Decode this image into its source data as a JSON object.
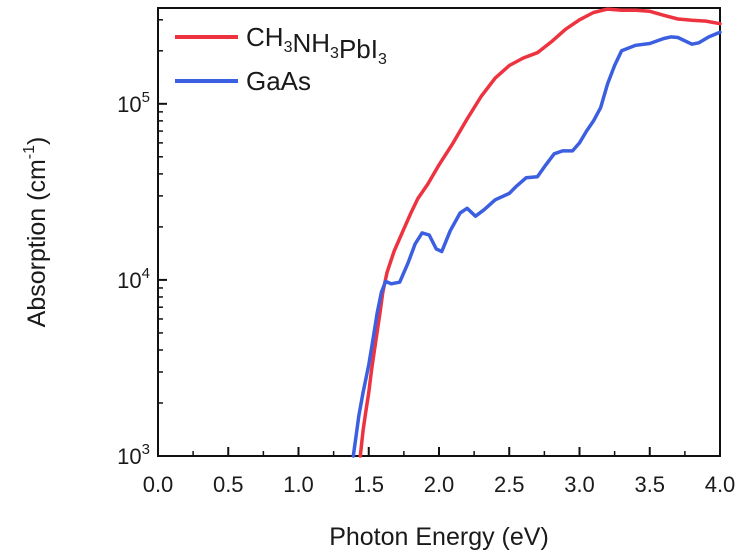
{
  "chart_data": {
    "type": "line",
    "title": "",
    "xlabel": "Photon Energy (eV)",
    "ylabel": {
      "base": "Absorption (cm",
      "sup": "-1",
      "close": ")"
    },
    "xlim": [
      0.0,
      4.0
    ],
    "ylim": [
      1000,
      350000
    ],
    "y_scale": "log",
    "x_ticks": [
      "0.0",
      "0.5",
      "1.0",
      "1.5",
      "2.0",
      "2.5",
      "3.0",
      "3.5",
      "4.0"
    ],
    "x_tick_values": [
      0.0,
      0.5,
      1.0,
      1.5,
      2.0,
      2.5,
      3.0,
      3.5,
      4.0
    ],
    "y_ticks": [
      {
        "value": 1000,
        "base": "10",
        "exp": "3"
      },
      {
        "value": 10000,
        "base": "10",
        "exp": "4"
      },
      {
        "value": 100000,
        "base": "10",
        "exp": "5"
      }
    ],
    "grid": false,
    "legend_position": "top-left",
    "series": [
      {
        "name": "CH3NH3PbI3",
        "legend": [
          {
            "t": "CH"
          },
          {
            "t": "3",
            "sub": true
          },
          {
            "t": "NH"
          },
          {
            "t": "3",
            "sub": true
          },
          {
            "t": "PbI"
          },
          {
            "t": "3",
            "sub": true
          }
        ],
        "color": "#ee3340",
        "points": [
          [
            1.44,
            1000
          ],
          [
            1.46,
            1400
          ],
          [
            1.48,
            1800
          ],
          [
            1.5,
            2300
          ],
          [
            1.52,
            3100
          ],
          [
            1.55,
            4500
          ],
          [
            1.58,
            6500
          ],
          [
            1.6,
            8500
          ],
          [
            1.63,
            11000
          ],
          [
            1.68,
            14500
          ],
          [
            1.75,
            19500
          ],
          [
            1.8,
            24000
          ],
          [
            1.85,
            29000
          ],
          [
            1.92,
            35000
          ],
          [
            2.0,
            45000
          ],
          [
            2.1,
            60000
          ],
          [
            2.2,
            82000
          ],
          [
            2.3,
            110000
          ],
          [
            2.4,
            140000
          ],
          [
            2.5,
            165000
          ],
          [
            2.6,
            182000
          ],
          [
            2.7,
            195000
          ],
          [
            2.8,
            225000
          ],
          [
            2.9,
            265000
          ],
          [
            3.0,
            300000
          ],
          [
            3.1,
            330000
          ],
          [
            3.2,
            345000
          ],
          [
            3.3,
            340000
          ],
          [
            3.4,
            340000
          ],
          [
            3.5,
            335000
          ],
          [
            3.6,
            318000
          ],
          [
            3.7,
            303000
          ],
          [
            3.8,
            298000
          ],
          [
            3.9,
            295000
          ],
          [
            4.0,
            285000
          ]
        ]
      },
      {
        "name": "GaAs",
        "legend": [
          {
            "t": "GaAs"
          }
        ],
        "color": "#3b5fe0",
        "points": [
          [
            1.39,
            1000
          ],
          [
            1.41,
            1300
          ],
          [
            1.43,
            1700
          ],
          [
            1.46,
            2300
          ],
          [
            1.5,
            3300
          ],
          [
            1.53,
            4600
          ],
          [
            1.56,
            6500
          ],
          [
            1.59,
            8500
          ],
          [
            1.62,
            9800
          ],
          [
            1.66,
            9500
          ],
          [
            1.72,
            9700
          ],
          [
            1.78,
            12500
          ],
          [
            1.83,
            16000
          ],
          [
            1.88,
            18500
          ],
          [
            1.93,
            18000
          ],
          [
            1.98,
            15000
          ],
          [
            2.02,
            14500
          ],
          [
            2.08,
            19000
          ],
          [
            2.15,
            24000
          ],
          [
            2.2,
            25500
          ],
          [
            2.26,
            23000
          ],
          [
            2.32,
            25000
          ],
          [
            2.4,
            28500
          ],
          [
            2.5,
            31000
          ],
          [
            2.55,
            34000
          ],
          [
            2.62,
            38000
          ],
          [
            2.7,
            38500
          ],
          [
            2.76,
            45000
          ],
          [
            2.82,
            52000
          ],
          [
            2.88,
            54000
          ],
          [
            2.95,
            54000
          ],
          [
            3.0,
            60000
          ],
          [
            3.05,
            70000
          ],
          [
            3.1,
            80000
          ],
          [
            3.15,
            95000
          ],
          [
            3.2,
            130000
          ],
          [
            3.25,
            165000
          ],
          [
            3.3,
            200000
          ],
          [
            3.4,
            215000
          ],
          [
            3.5,
            220000
          ],
          [
            3.6,
            235000
          ],
          [
            3.65,
            240000
          ],
          [
            3.7,
            238000
          ],
          [
            3.8,
            218000
          ],
          [
            3.85,
            222000
          ],
          [
            3.92,
            240000
          ],
          [
            4.0,
            255000
          ]
        ]
      }
    ]
  }
}
